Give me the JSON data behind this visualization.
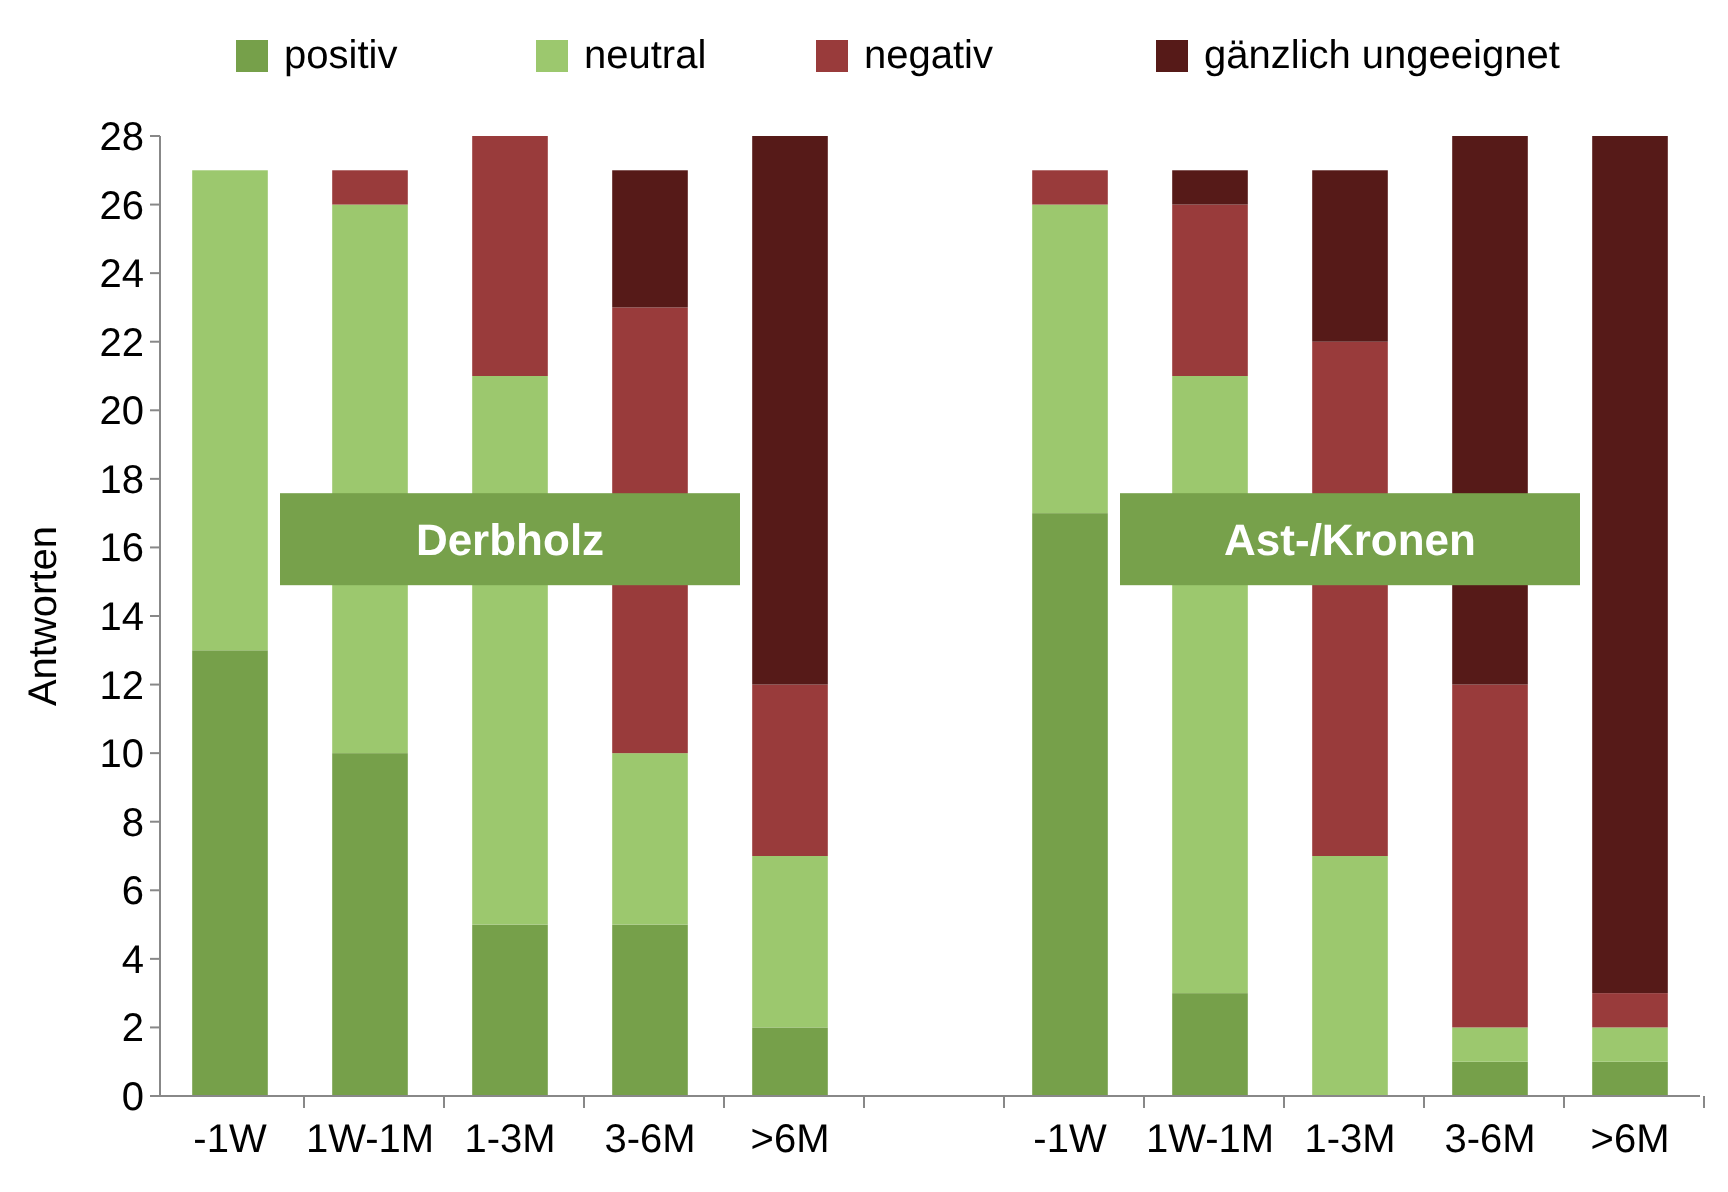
{
  "chart_data": {
    "type": "bar",
    "stacked": true,
    "ylabel": "Antworten",
    "categories": [
      "-1W",
      "1W-1M",
      "1-3M",
      "3-6M",
      ">6M",
      null,
      "-1W",
      "1W-1M",
      "1-3M",
      "3-6M",
      ">6M"
    ],
    "series": [
      {
        "name": "positiv",
        "color": "#76a04a",
        "values": [
          13,
          10,
          5,
          5,
          2,
          null,
          17,
          3,
          0,
          1,
          1
        ]
      },
      {
        "name": "neutral",
        "color": "#9cc86e",
        "values": [
          14,
          16,
          16,
          5,
          5,
          null,
          9,
          18,
          7,
          1,
          1
        ]
      },
      {
        "name": "negativ",
        "color": "#993b3b",
        "values": [
          0,
          1,
          7,
          13,
          5,
          null,
          1,
          5,
          15,
          10,
          1
        ]
      },
      {
        "name": "gänzlich ungeeignet",
        "color": "#561a18",
        "values": [
          0,
          0,
          0,
          4,
          16,
          null,
          0,
          1,
          5,
          16,
          25
        ]
      }
    ],
    "ylim": [
      0,
      28
    ],
    "yticks": [
      0,
      2,
      4,
      6,
      8,
      10,
      12,
      14,
      16,
      18,
      20,
      22,
      24,
      26,
      28
    ],
    "annotations": [
      "Derbholz",
      "Ast-/Kronen"
    ],
    "legend": "top",
    "grid": false
  }
}
